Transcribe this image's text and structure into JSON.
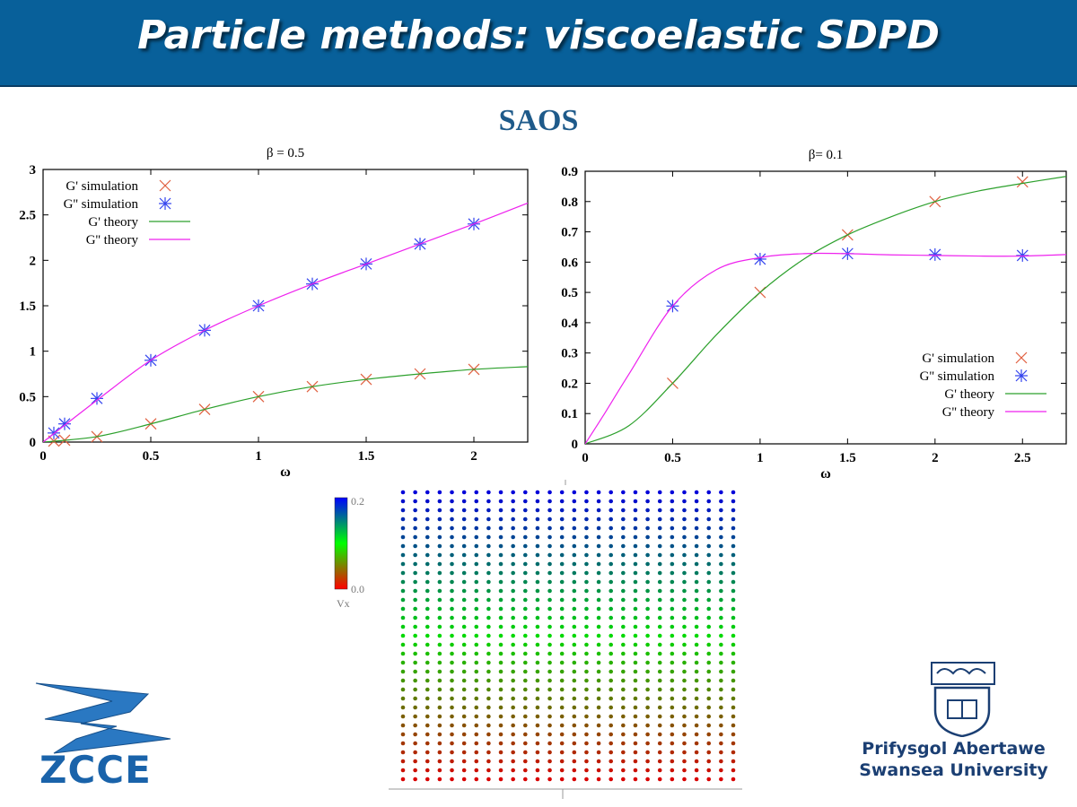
{
  "header": {
    "title": "Particle methods: viscoelastic SDPD"
  },
  "section": {
    "title": "SAOS"
  },
  "colors": {
    "header_bg": "#08609a",
    "gp_sim": "#e06040",
    "gpp_sim": "#3344ee",
    "gp_theory": "#2ca02c",
    "gpp_theory": "#ee22ee"
  },
  "chart_data": [
    {
      "type": "line",
      "title": "β = 0.5",
      "xlabel": "ω",
      "ylabel": "",
      "xlim": [
        0,
        2.25
      ],
      "ylim": [
        0,
        3
      ],
      "xticks": [
        "0",
        "0.5",
        "1",
        "1.5",
        "2"
      ],
      "yticks": [
        "0",
        "0.5",
        "1",
        "1.5",
        "2",
        "2.5",
        "3"
      ],
      "legend_position": "top-left",
      "series": [
        {
          "name": "G' simulation",
          "kind": "scatter",
          "marker": "x",
          "x": [
            0.05,
            0.1,
            0.25,
            0.5,
            0.75,
            1.0,
            1.25,
            1.5,
            1.75,
            2.0
          ],
          "y": [
            0.01,
            0.02,
            0.06,
            0.2,
            0.36,
            0.5,
            0.61,
            0.69,
            0.75,
            0.8
          ]
        },
        {
          "name": "G'' simulation",
          "kind": "scatter",
          "marker": "asterisk",
          "x": [
            0.05,
            0.1,
            0.25,
            0.5,
            0.75,
            1.0,
            1.25,
            1.5,
            1.75,
            2.0
          ],
          "y": [
            0.1,
            0.2,
            0.48,
            0.9,
            1.23,
            1.5,
            1.74,
            1.96,
            2.18,
            2.4
          ]
        },
        {
          "name": "G' theory",
          "kind": "line",
          "x": [
            0,
            0.25,
            0.5,
            0.75,
            1.0,
            1.25,
            1.5,
            1.75,
            2.0,
            2.25
          ],
          "y": [
            0,
            0.06,
            0.2,
            0.36,
            0.5,
            0.61,
            0.69,
            0.75,
            0.8,
            0.83
          ]
        },
        {
          "name": "G'' theory",
          "kind": "line",
          "x": [
            0,
            0.25,
            0.5,
            0.75,
            1.0,
            1.25,
            1.5,
            1.75,
            2.0,
            2.25
          ],
          "y": [
            0,
            0.46,
            0.9,
            1.23,
            1.5,
            1.74,
            1.96,
            2.18,
            2.4,
            2.63
          ]
        }
      ]
    },
    {
      "type": "line",
      "title": "β= 0.1",
      "xlabel": "ω",
      "ylabel": "",
      "xlim": [
        0,
        2.75
      ],
      "ylim": [
        0,
        0.9
      ],
      "xticks": [
        "0",
        "0.5",
        "1",
        "1.5",
        "2",
        "2.5"
      ],
      "yticks": [
        "0",
        "0.1",
        "0.2",
        "0.3",
        "0.4",
        "0.5",
        "0.6",
        "0.7",
        "0.8",
        "0.9"
      ],
      "legend_position": "bottom-right",
      "series": [
        {
          "name": "G' simulation",
          "kind": "scatter",
          "marker": "x",
          "x": [
            0.5,
            1.0,
            1.5,
            2.0,
            2.5
          ],
          "y": [
            0.2,
            0.5,
            0.69,
            0.8,
            0.865
          ]
        },
        {
          "name": "G'' simulation",
          "kind": "scatter",
          "marker": "asterisk",
          "x": [
            0.5,
            1.0,
            1.5,
            2.0,
            2.5
          ],
          "y": [
            0.455,
            0.61,
            0.628,
            0.625,
            0.622
          ]
        },
        {
          "name": "G' theory",
          "kind": "line",
          "x": [
            0,
            0.25,
            0.5,
            0.75,
            1.0,
            1.25,
            1.5,
            1.75,
            2.0,
            2.25,
            2.5,
            2.75
          ],
          "y": [
            0,
            0.06,
            0.2,
            0.36,
            0.5,
            0.61,
            0.69,
            0.75,
            0.8,
            0.835,
            0.86,
            0.883
          ]
        },
        {
          "name": "G'' theory",
          "kind": "line",
          "x": [
            0,
            0.1,
            0.25,
            0.5,
            0.75,
            1.0,
            1.25,
            1.5,
            1.75,
            2.0,
            2.25,
            2.5,
            2.75
          ],
          "y": [
            0,
            0.09,
            0.23,
            0.455,
            0.575,
            0.615,
            0.628,
            0.628,
            0.624,
            0.622,
            0.62,
            0.62,
            0.625
          ]
        }
      ]
    },
    {
      "type": "heatmap",
      "title": "",
      "colorbar": {
        "label": "Vx",
        "min_label": "0.0",
        "max_label": "0.2",
        "min": 0.0,
        "max": 0.2
      },
      "rows": 33,
      "cols": 28,
      "gradient": "velocity Vx increases linearly from 0.0 (bottom row, red) to 0.2 (top row, blue)"
    }
  ],
  "logos": {
    "left_text": "ZCCE",
    "right_line1": "Prifysgol Abertawe",
    "right_line2": "Swansea University"
  }
}
